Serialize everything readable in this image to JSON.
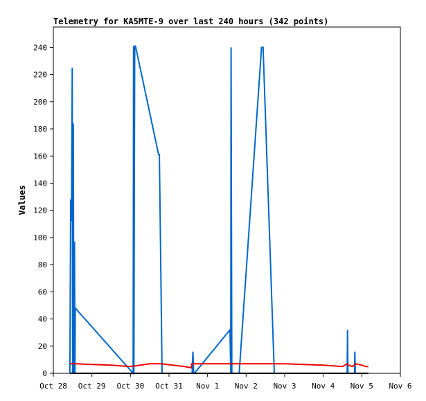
{
  "chart_data": {
    "type": "line",
    "title": "Telemetry for KA5MTE-9 over last 240 hours (342 points)",
    "xlabel": "",
    "ylabel": "Values",
    "ylim": [
      0,
      255
    ],
    "yticks": [
      0,
      20,
      40,
      60,
      80,
      100,
      120,
      140,
      160,
      180,
      200,
      220,
      240
    ],
    "xlim": [
      0,
      9
    ],
    "xticks": [
      {
        "label": "Oct 28",
        "value": 0
      },
      {
        "label": "Oct 29",
        "value": 1
      },
      {
        "label": "Oct 30",
        "value": 2
      },
      {
        "label": "Oct 31",
        "value": 3
      },
      {
        "label": "Nov 1",
        "value": 4
      },
      {
        "label": "Nov 2",
        "value": 5
      },
      {
        "label": "Nov 3",
        "value": 6
      },
      {
        "label": "Nov 4",
        "value": 7
      },
      {
        "label": "Nov 5",
        "value": 8
      },
      {
        "label": "Nov 6",
        "value": 9
      }
    ],
    "x_unit": "days",
    "series": [
      {
        "color": "#0066cc",
        "x": [
          0.43,
          0.45,
          0.47,
          0.49,
          0.5,
          0.52,
          0.53,
          0.55,
          0.56,
          0.57,
          2.07,
          2.08,
          2.09,
          2.11,
          2.13,
          2.73,
          2.75,
          2.82,
          2.84,
          3.6,
          3.62,
          3.64,
          3.66,
          4.58,
          4.6,
          4.61,
          4.63,
          4.82,
          5.4,
          5.44,
          5.73,
          5.75,
          7.62,
          7.63,
          7.64,
          7.81,
          7.82,
          7.83
        ],
        "y": [
          0,
          128,
          112,
          225,
          0,
          184,
          0,
          97,
          0,
          48,
          0,
          241,
          0,
          241,
          241,
          161,
          161,
          0,
          0,
          0,
          16,
          0,
          0,
          32,
          0,
          240,
          0,
          0,
          240,
          240,
          0,
          0,
          0,
          32,
          0,
          0,
          16,
          0
        ]
      },
      {
        "color": "#ee0000",
        "x": [
          0.43,
          0.6,
          1.0,
          1.5,
          2.0,
          2.5,
          2.8,
          3.1,
          3.4,
          3.58,
          3.59,
          3.61,
          3.7,
          4.0,
          4.5,
          5.0,
          5.5,
          6.0,
          6.5,
          7.0,
          7.5,
          7.62,
          7.65,
          7.75,
          7.85,
          7.92,
          8.0,
          8.1,
          8.17
        ],
        "y": [
          7,
          7,
          6.5,
          6,
          5,
          7,
          7,
          6,
          5,
          4,
          7,
          7,
          7,
          7,
          7,
          7,
          7,
          7,
          6.5,
          6,
          5,
          7,
          6,
          5,
          7,
          6.5,
          6,
          5,
          5
        ]
      },
      {
        "color": "#000000",
        "x": [
          0.43,
          8.17
        ],
        "y": [
          0,
          0
        ]
      }
    ]
  }
}
